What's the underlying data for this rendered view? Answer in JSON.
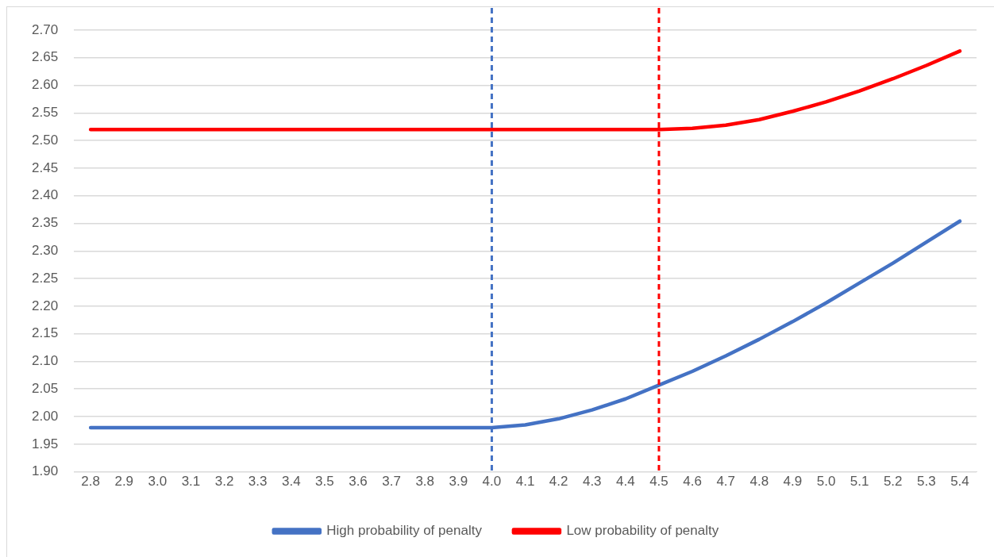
{
  "chart_data": {
    "type": "line",
    "x": [
      2.8,
      2.9,
      3.0,
      3.1,
      3.2,
      3.3,
      3.4,
      3.5,
      3.6,
      3.7,
      3.8,
      3.9,
      4.0,
      4.1,
      4.2,
      4.3,
      4.4,
      4.5,
      4.6,
      4.7,
      4.8,
      4.9,
      5.0,
      5.1,
      5.2,
      5.3,
      5.4
    ],
    "xlim": [
      2.75,
      5.45
    ],
    "xticks": [
      2.8,
      2.9,
      {
        "value": 3.0,
        "label": "3.0"
      },
      3.1,
      3.2,
      3.3,
      3.4,
      3.5,
      3.6,
      3.7,
      3.8,
      3.9,
      {
        "value": 4.0,
        "label": "4.0"
      },
      4.1,
      4.2,
      4.3,
      4.4,
      4.5,
      4.6,
      4.7,
      4.8,
      4.9,
      {
        "value": 5.0,
        "label": "5.0"
      },
      5.1,
      5.2,
      5.3,
      5.4
    ],
    "ylim": [
      1.9,
      2.7
    ],
    "yticks": [
      {
        "value": 1.9,
        "label": "1.90"
      },
      1.95,
      {
        "value": 2.0,
        "label": "2.00"
      },
      2.05,
      {
        "value": 2.1,
        "label": "2.10"
      },
      2.15,
      {
        "value": 2.2,
        "label": "2.20"
      },
      2.25,
      {
        "value": 2.3,
        "label": "2.30"
      },
      2.35,
      {
        "value": 2.4,
        "label": "2.40"
      },
      2.45,
      {
        "value": 2.5,
        "label": "2.50"
      },
      2.55,
      {
        "value": 2.6,
        "label": "2.60"
      },
      2.65,
      {
        "value": 2.7,
        "label": "2.70"
      }
    ],
    "series": [
      {
        "name": "High probability of penalty",
        "color": "#4472c4",
        "values": [
          1.98,
          1.98,
          1.98,
          1.98,
          1.98,
          1.98,
          1.98,
          1.98,
          1.98,
          1.98,
          1.98,
          1.98,
          1.98,
          1.985,
          1.996,
          2.012,
          2.032,
          2.057,
          2.082,
          2.11,
          2.14,
          2.172,
          2.206,
          2.242,
          2.278,
          2.316,
          2.354
        ]
      },
      {
        "name": "Low probability of penalty",
        "color": "#ff0000",
        "values": [
          2.52,
          2.52,
          2.52,
          2.52,
          2.52,
          2.52,
          2.52,
          2.52,
          2.52,
          2.52,
          2.52,
          2.52,
          2.52,
          2.52,
          2.52,
          2.52,
          2.52,
          2.52,
          2.522,
          2.528,
          2.538,
          2.553,
          2.57,
          2.59,
          2.612,
          2.636,
          2.662
        ]
      }
    ],
    "ref_lines": [
      {
        "axis": "x",
        "value": 4.0,
        "color": "#4472c4",
        "line_style": "dashed"
      },
      {
        "axis": "x",
        "value": 4.5,
        "color": "#ff0000",
        "line_style": "dashed"
      }
    ],
    "grid": "y",
    "legend": "bottom",
    "marker": "none",
    "line_style": "solid"
  }
}
